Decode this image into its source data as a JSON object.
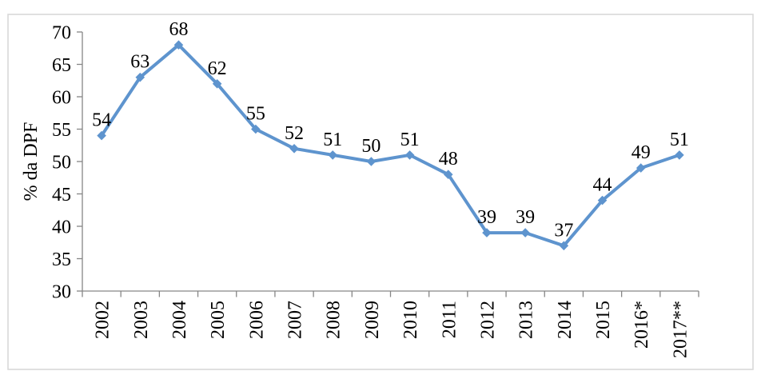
{
  "figure": {
    "background": "#FFFFFF",
    "border_color": "#D9D9D9"
  },
  "chart_data": {
    "type": "line",
    "title": "",
    "xlabel": "",
    "ylabel": "% da DPF",
    "categories": [
      "2002",
      "2003",
      "2004",
      "2005",
      "2006",
      "2007",
      "2008",
      "2009",
      "2010",
      "2011",
      "2012",
      "2013",
      "2014",
      "2015",
      "2016*",
      "2017**"
    ],
    "series": [
      {
        "name": "% da DPF",
        "values": [
          54,
          63,
          68,
          62,
          55,
          52,
          51,
          50,
          51,
          48,
          39,
          39,
          37,
          44,
          49,
          51
        ],
        "color": "#5E94CE",
        "marker": "diamond",
        "data_labels": true
      }
    ],
    "ylim": [
      30,
      70
    ],
    "yticks": [
      30,
      35,
      40,
      45,
      50,
      55,
      60,
      65,
      70
    ],
    "ytick_step": 5,
    "grid": false,
    "legend": "none",
    "axis_color": "#868686",
    "x_tick_label_rotation": 90
  }
}
